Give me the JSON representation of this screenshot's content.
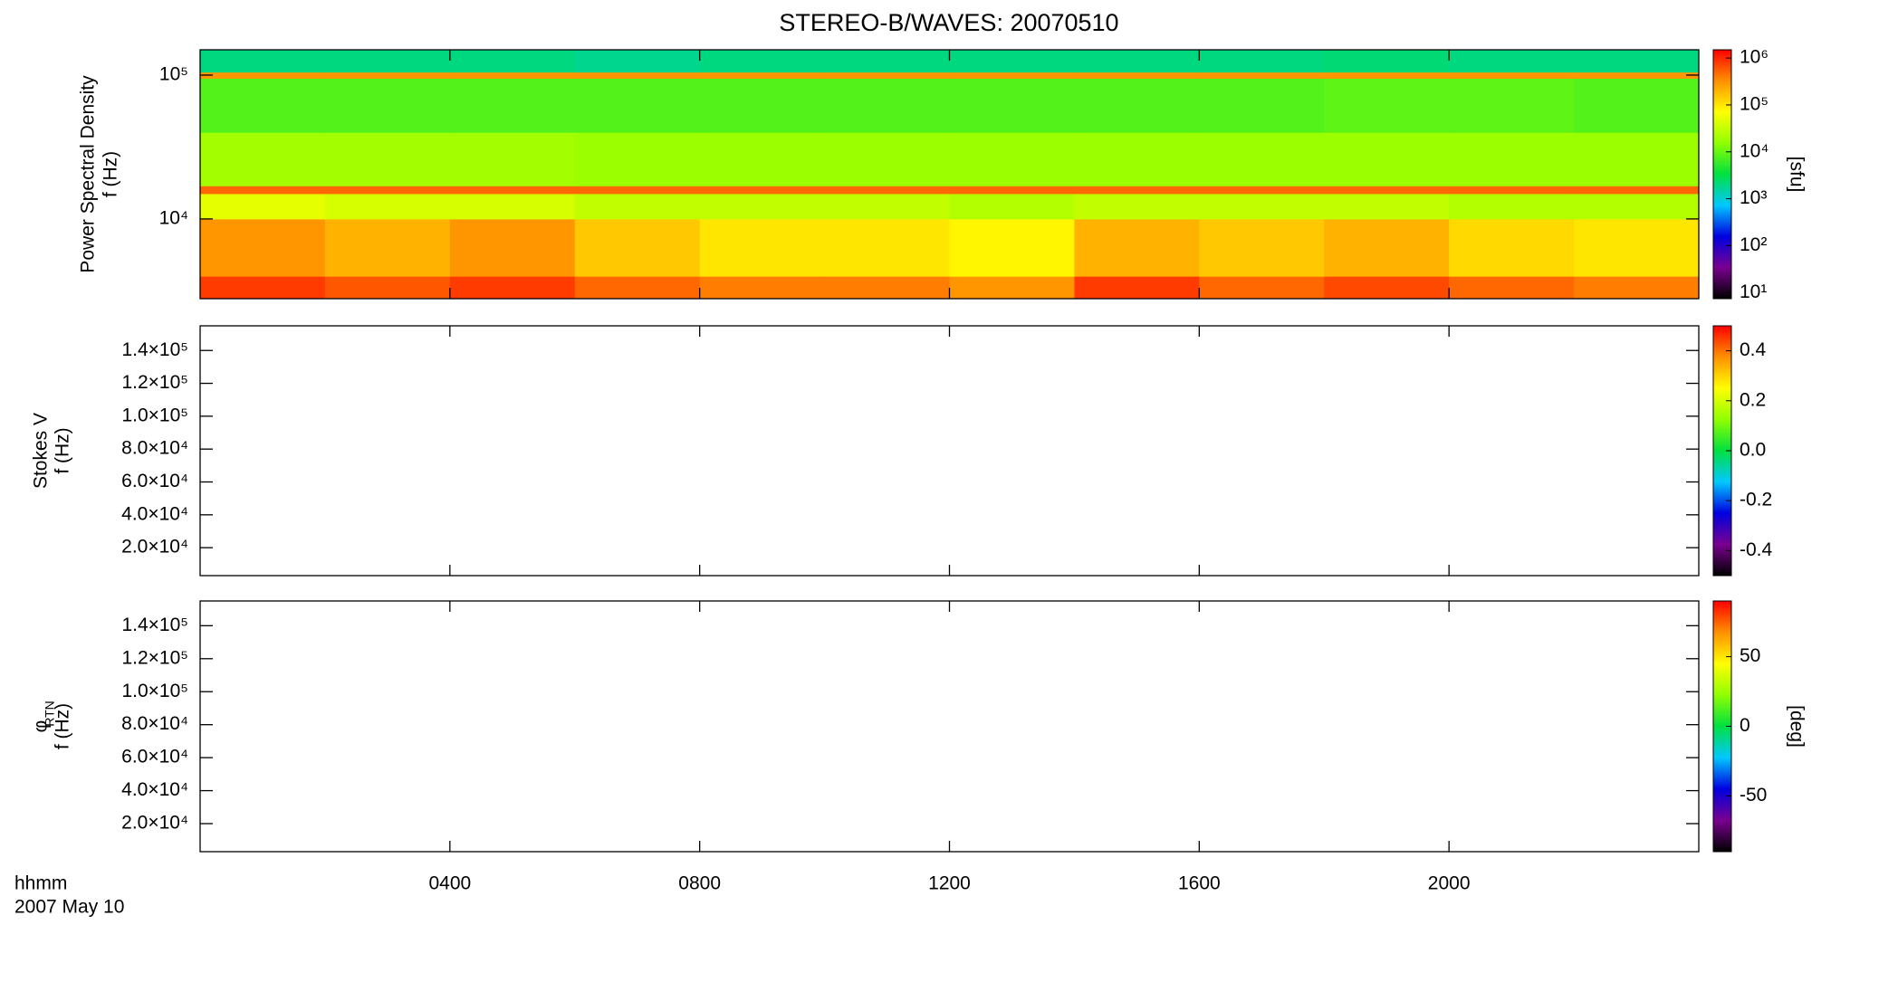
{
  "title": "STEREO-B/WAVES: 20070510",
  "time_axis": {
    "label": "hhmm",
    "date": "2007 May 10",
    "xlim": [
      0,
      24
    ],
    "xticks": [
      {
        "value": 4,
        "label": "0400"
      },
      {
        "value": 8,
        "label": "0800"
      },
      {
        "value": 12,
        "label": "1200"
      },
      {
        "value": 16,
        "label": "1600"
      },
      {
        "value": 20,
        "label": "2000"
      }
    ]
  },
  "chart_data": [
    {
      "type": "heatmap",
      "ylabel": [
        "Power Spectral Density",
        "f (Hz)"
      ],
      "ylog": true,
      "ylim": [
        2790,
        150000
      ],
      "yticks": [
        {
          "value": 10000,
          "label": "10⁴"
        },
        {
          "value": 100000,
          "label": "10⁵"
        }
      ],
      "zlog": true,
      "zlim": [
        7.4,
        1500000
      ],
      "zlabel": "[sfu]",
      "zticks": [
        {
          "value": 10,
          "label": "10¹"
        },
        {
          "value": 100,
          "label": "10²"
        },
        {
          "value": 1000,
          "label": "10³"
        },
        {
          "value": 10000,
          "label": "10⁴"
        },
        {
          "value": 100000,
          "label": "10⁵"
        },
        {
          "value": 1000000,
          "label": "10⁶"
        }
      ],
      "time_bins": [
        0,
        2,
        4,
        6,
        8,
        10,
        12,
        14,
        16,
        18,
        20,
        22,
        24
      ],
      "freq_bins": [
        2790,
        4000,
        10000,
        15000,
        17000,
        40000,
        95000,
        105000,
        150000
      ],
      "z": [
        [
          800000,
          600000,
          800000,
          500000,
          400000,
          400000,
          300000,
          800000,
          500000,
          700000,
          500000,
          400000
        ],
        [
          300000,
          200000,
          300000,
          150000,
          100000,
          100000,
          80000,
          200000,
          150000,
          200000,
          120000,
          100000
        ],
        [
          50000,
          40000,
          40000,
          30000,
          30000,
          30000,
          25000,
          30000,
          30000,
          30000,
          25000,
          25000
        ],
        [
          500000,
          500000,
          500000,
          500000,
          500000,
          500000,
          500000,
          500000,
          500000,
          500000,
          500000,
          500000
        ],
        [
          20000,
          20000,
          20000,
          18000,
          18000,
          18000,
          18000,
          18000,
          18000,
          18000,
          18000,
          18000
        ],
        [
          8000,
          8000,
          8000,
          8000,
          8000,
          8000,
          8000,
          8000,
          8000,
          9000,
          9000,
          8000
        ],
        [
          300000,
          300000,
          300000,
          300000,
          300000,
          300000,
          300000,
          300000,
          300000,
          300000,
          300000,
          300000
        ],
        [
          2000,
          2000,
          2000,
          1800,
          2000,
          2000,
          2000,
          2000,
          2000,
          2200,
          2000,
          2000
        ]
      ]
    },
    {
      "type": "heatmap",
      "ylabel": [
        "Stokes V",
        "f (Hz)"
      ],
      "ylim": [
        3000,
        155000
      ],
      "yticks": [
        {
          "value": 20000,
          "label": "2.0×10⁴"
        },
        {
          "value": 40000,
          "label": "4.0×10⁴"
        },
        {
          "value": 60000,
          "label": "6.0×10⁴"
        },
        {
          "value": 80000,
          "label": "8.0×10⁴"
        },
        {
          "value": 100000,
          "label": "1.0×10⁵"
        },
        {
          "value": 120000,
          "label": "1.2×10⁵"
        },
        {
          "value": 140000,
          "label": "1.4×10⁵"
        }
      ],
      "zlim": [
        -0.5,
        0.5
      ],
      "zticks": [
        -0.4,
        -0.2,
        {
          "value": 0,
          "label": "0.0"
        },
        0.2,
        0.4
      ]
    },
    {
      "type": "heatmap",
      "ylabel": [
        "φ",
        "f (Hz)"
      ],
      "ylabel_subscript": "RTN",
      "ylim": [
        3000,
        155000
      ],
      "yticks": [
        {
          "value": 20000,
          "label": "2.0×10⁴"
        },
        {
          "value": 40000,
          "label": "4.0×10⁴"
        },
        {
          "value": 60000,
          "label": "6.0×10⁴"
        },
        {
          "value": 80000,
          "label": "8.0×10⁴"
        },
        {
          "value": 100000,
          "label": "1.0×10⁵"
        },
        {
          "value": 120000,
          "label": "1.2×10⁵"
        },
        {
          "value": 140000,
          "label": "1.4×10⁵"
        }
      ],
      "zlim": [
        -90,
        90
      ],
      "zlabel": "[deg]",
      "zticks": [
        -50,
        0,
        50
      ]
    }
  ],
  "colormap": [
    "#000000",
    "#7a0090",
    "#0000e0",
    "#00c8ff",
    "#00e040",
    "#90ff00",
    "#ffff00",
    "#ff9000",
    "#ff0000"
  ]
}
